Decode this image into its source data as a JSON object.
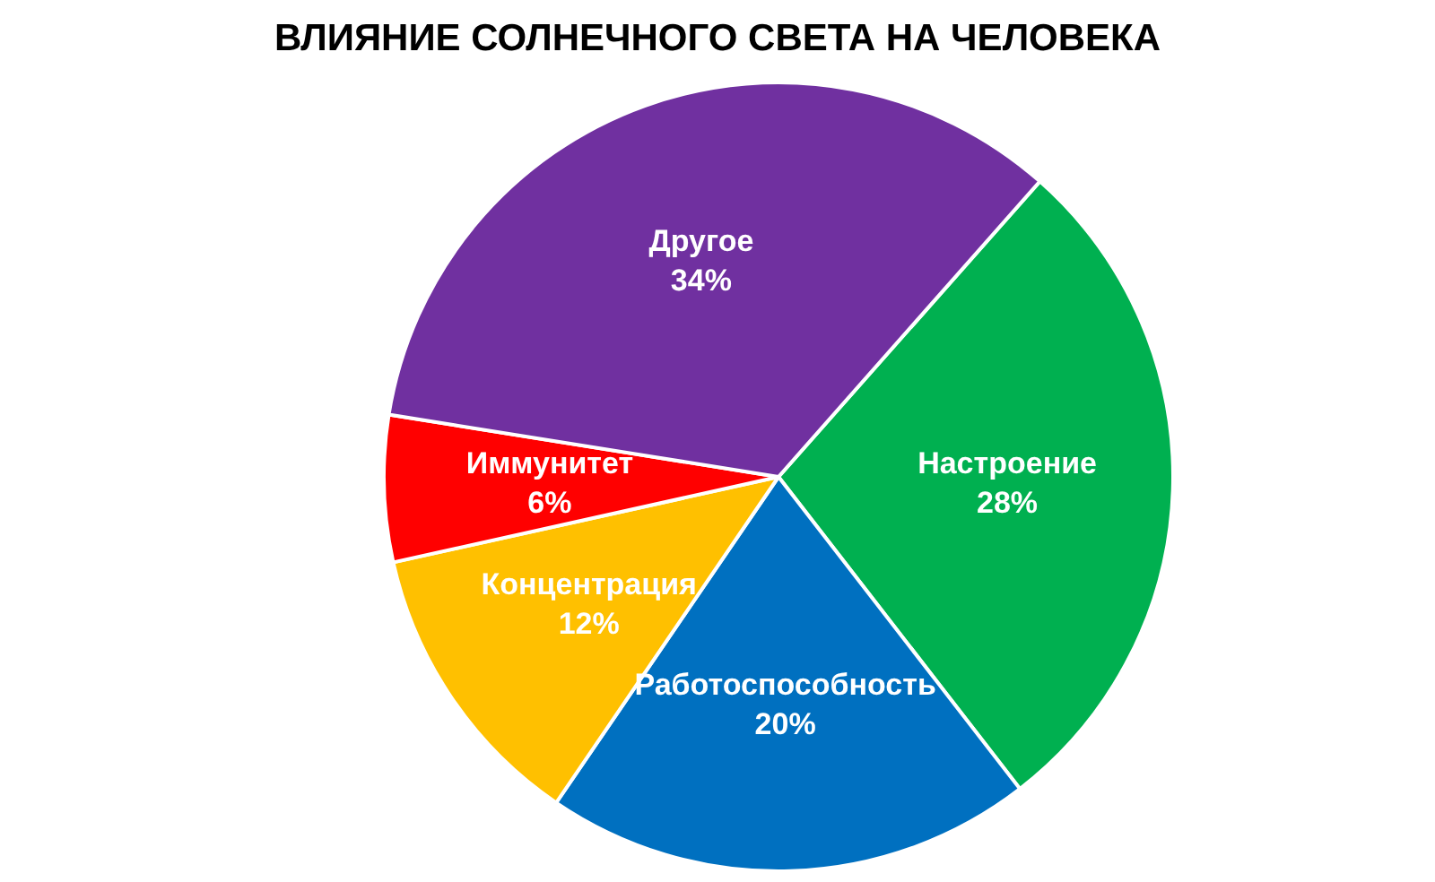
{
  "chart_data": {
    "type": "pie",
    "title": "ВЛИЯНИЕ СОЛНЕЧНОГО СВЕТА НА ЧЕЛОВЕКА",
    "categories": [
      "Настроение",
      "Работоспособность",
      "Концентрация",
      "Иммунитет",
      "Другое"
    ],
    "values": [
      28,
      20,
      12,
      6,
      34
    ],
    "colors": [
      "#00b050",
      "#0070c0",
      "#ffc000",
      "#ff0000",
      "#7030a0"
    ],
    "value_labels": [
      "28%",
      "20%",
      "12%",
      "6%",
      "34%"
    ]
  }
}
